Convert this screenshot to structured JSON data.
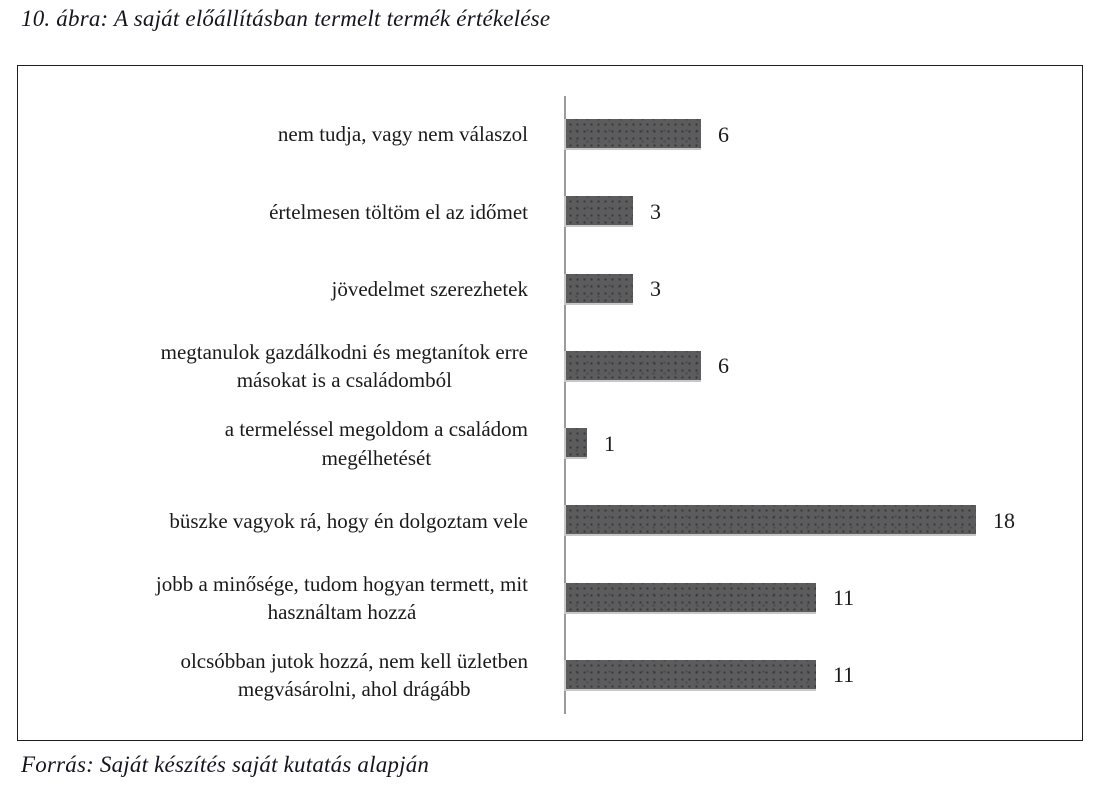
{
  "header": {
    "title": "10. ábra: A saját előállításban termelt termék értékelése"
  },
  "footer": {
    "source": "Forrás: Saját készítés saját kutatás alapján"
  },
  "chart_data": {
    "type": "bar",
    "orientation": "horizontal",
    "title": "10. ábra: A saját előállításban termelt termék értékelése",
    "source": "Forrás: Saját készítés saját kutatás alapján",
    "categories": [
      "nem tudja, vagy nem válaszol",
      "értelmesen töltöm el az időmet",
      "jövedelmet szerezhetek",
      "megtanulok gazdálkodni és megtanítok erre\nmásokat is a családomból",
      "a termeléssel megoldom a családom\nmegélhetését",
      "büszke vagyok rá, hogy én dolgoztam vele",
      "jobb a minősége, tudom hogyan termett, mit\nhasználtam hozzá",
      "olcsóbban jutok hozzá, nem kell üzletben\nmegvásárolni, ahol drágább"
    ],
    "values": [
      6,
      3,
      3,
      6,
      1,
      18,
      11,
      11
    ],
    "value_labels_shown": true,
    "xlim": [
      0,
      22
    ],
    "grid": false,
    "legend": false,
    "bar_color": "#5c5c5c",
    "axis_color": "#9b9b9b",
    "text_color": "#1a1a1a"
  }
}
